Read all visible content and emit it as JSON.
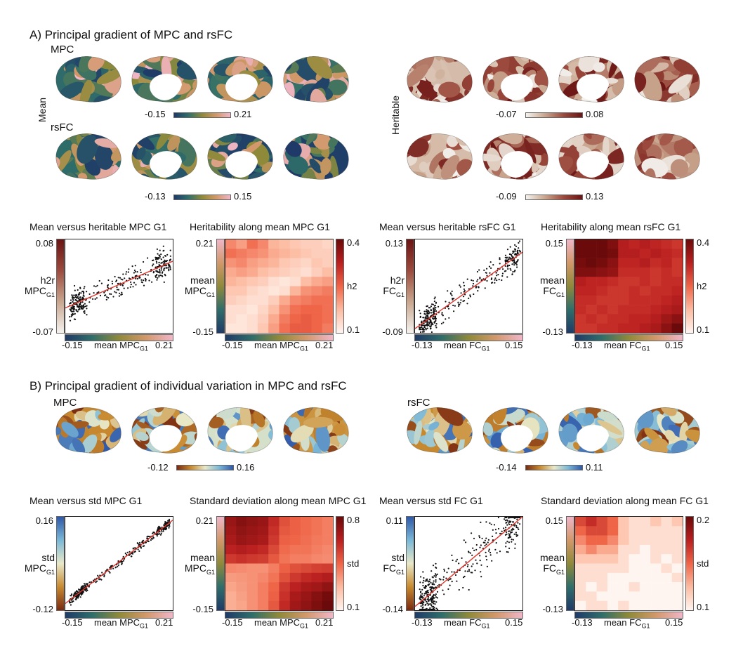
{
  "section_a": {
    "title": "A) Principal gradient of MPC and rsFC",
    "mpc_label": "MPC",
    "rsfc_label": "rsFC",
    "row_label_mean": "Mean",
    "row_label_heritable": "Heritable",
    "colorbars": {
      "mpc_mean": {
        "min": "-0.15",
        "max": "0.21"
      },
      "rsfc_mean": {
        "min": "-0.13",
        "max": "0.15"
      },
      "mpc_heritable": {
        "min": "-0.07",
        "max": "0.08"
      },
      "rsfc_heritable": {
        "min": "-0.09",
        "max": "0.13"
      }
    },
    "colors": {
      "mean_cmap": [
        "#1f3a68",
        "#2f6e6a",
        "#8f8a3a",
        "#d2986a",
        "#f0b6c8"
      ],
      "heritable_cmap": [
        "#f4f2ef",
        "#c9a68e",
        "#9c4b3e",
        "#6b1414"
      ]
    }
  },
  "section_b": {
    "title": "B) Principal gradient of individual variation in MPC and rsFC",
    "mpc_label": "MPC",
    "rsfc_label": "rsFC",
    "colorbars": {
      "mpc_std": {
        "min": "-0.12",
        "max": "0.16"
      },
      "rsfc_std": {
        "min": "-0.14",
        "max": "0.11"
      }
    },
    "colors": {
      "std_cmap": [
        "#7a2a10",
        "#c88a30",
        "#e8e8c8",
        "#7ab8d8",
        "#2f58a8"
      ]
    }
  },
  "chart_data": [
    {
      "type": "scatter",
      "title": "Mean versus heritable MPC G1",
      "ylabel_top": "h2r",
      "ylabel_main": "MPC",
      "ylabel_sub": "G1",
      "xlabel_main": "mean MPC",
      "xlabel_sub": "G1",
      "xlim": [
        -0.15,
        0.21
      ],
      "ylim": [
        -0.07,
        0.08
      ],
      "x_ticks": [
        "-0.15",
        "0.21"
      ],
      "y_ticks": [
        "0.08",
        "-0.07"
      ],
      "fit_line": {
        "x": [
          -0.15,
          0.21
        ],
        "y": [
          -0.03,
          0.045
        ]
      },
      "seed": 11,
      "n_points": 380,
      "noise": 0.016
    },
    {
      "type": "heatmap",
      "title": "Heritability along mean MPC G1",
      "ylabel_top": "mean",
      "ylabel_main": "MPC",
      "ylabel_sub": "G1",
      "xlabel_main": "mean MPC",
      "xlabel_sub": "G1",
      "x_ticks": [
        "-0.15",
        "0.21"
      ],
      "y_ticks": [
        "0.21",
        "-0.15"
      ],
      "colorbar_label": "h2",
      "colorbar_ticks": [
        "0.4",
        "0.1"
      ],
      "vmin": 0.1,
      "vmax": 0.4,
      "values": [
        [
          0.22,
          0.2,
          0.24,
          0.22,
          0.18,
          0.17,
          0.16,
          0.15,
          0.15,
          0.14
        ],
        [
          0.24,
          0.23,
          0.22,
          0.21,
          0.19,
          0.18,
          0.17,
          0.16,
          0.15,
          0.15
        ],
        [
          0.21,
          0.22,
          0.2,
          0.19,
          0.18,
          0.16,
          0.15,
          0.14,
          0.16,
          0.15
        ],
        [
          0.19,
          0.2,
          0.19,
          0.17,
          0.16,
          0.15,
          0.14,
          0.13,
          0.15,
          0.17
        ],
        [
          0.18,
          0.17,
          0.16,
          0.15,
          0.13,
          0.12,
          0.13,
          0.17,
          0.19,
          0.2
        ],
        [
          0.16,
          0.16,
          0.14,
          0.13,
          0.12,
          0.13,
          0.18,
          0.21,
          0.22,
          0.23
        ],
        [
          0.15,
          0.14,
          0.13,
          0.13,
          0.15,
          0.19,
          0.22,
          0.23,
          0.24,
          0.24
        ],
        [
          0.13,
          0.13,
          0.12,
          0.14,
          0.17,
          0.21,
          0.24,
          0.25,
          0.25,
          0.24
        ],
        [
          0.13,
          0.12,
          0.13,
          0.15,
          0.19,
          0.23,
          0.25,
          0.26,
          0.25,
          0.24
        ],
        [
          0.12,
          0.12,
          0.13,
          0.16,
          0.2,
          0.24,
          0.26,
          0.26,
          0.25,
          0.23
        ]
      ]
    },
    {
      "type": "scatter",
      "title": "Mean versus heritable rsFC G1",
      "ylabel_top": "h2r",
      "ylabel_main": "FC",
      "ylabel_sub": "G1",
      "xlabel_main": "mean FC",
      "xlabel_sub": "G1",
      "xlim": [
        -0.13,
        0.15
      ],
      "ylim": [
        -0.09,
        0.13
      ],
      "x_ticks": [
        "-0.13",
        "0.15"
      ],
      "y_ticks": [
        "0.13",
        "-0.09"
      ],
      "fit_line": {
        "x": [
          -0.13,
          0.15
        ],
        "y": [
          -0.08,
          0.1
        ]
      },
      "seed": 23,
      "n_points": 380,
      "noise": 0.022
    },
    {
      "type": "heatmap",
      "title": "Heritability along mean rsFC G1",
      "ylabel_top": "mean",
      "ylabel_main": "FC",
      "ylabel_sub": "G1",
      "xlabel_main": "mean FC",
      "xlabel_sub": "G1",
      "x_ticks": [
        "-0.13",
        "0.15"
      ],
      "y_ticks": [
        "0.15",
        "-0.13"
      ],
      "colorbar_label": "h2",
      "colorbar_ticks": [
        "0.4",
        "0.1"
      ],
      "vmin": 0.1,
      "vmax": 0.4,
      "values": [
        [
          0.4,
          0.4,
          0.4,
          0.38,
          0.33,
          0.32,
          0.33,
          0.32,
          0.31,
          0.3
        ],
        [
          0.4,
          0.4,
          0.4,
          0.39,
          0.33,
          0.33,
          0.32,
          0.33,
          0.32,
          0.31
        ],
        [
          0.39,
          0.4,
          0.39,
          0.37,
          0.32,
          0.32,
          0.33,
          0.31,
          0.32,
          0.3
        ],
        [
          0.38,
          0.38,
          0.37,
          0.36,
          0.31,
          0.31,
          0.31,
          0.3,
          0.31,
          0.3
        ],
        [
          0.33,
          0.32,
          0.32,
          0.31,
          0.3,
          0.3,
          0.31,
          0.3,
          0.31,
          0.31
        ],
        [
          0.32,
          0.32,
          0.31,
          0.3,
          0.3,
          0.31,
          0.3,
          0.31,
          0.31,
          0.32
        ],
        [
          0.31,
          0.31,
          0.3,
          0.3,
          0.3,
          0.31,
          0.31,
          0.31,
          0.32,
          0.33
        ],
        [
          0.31,
          0.3,
          0.31,
          0.3,
          0.31,
          0.31,
          0.31,
          0.32,
          0.33,
          0.34
        ],
        [
          0.3,
          0.31,
          0.3,
          0.31,
          0.31,
          0.32,
          0.32,
          0.33,
          0.35,
          0.37
        ],
        [
          0.3,
          0.3,
          0.31,
          0.31,
          0.32,
          0.32,
          0.33,
          0.34,
          0.37,
          0.4
        ]
      ]
    },
    {
      "type": "scatter",
      "title": "Mean versus std MPC G1",
      "ylabel_top": "std",
      "ylabel_main": "MPC",
      "ylabel_sub": "G1",
      "xlabel_main": "mean MPC",
      "xlabel_sub": "G1",
      "xlim": [
        -0.15,
        0.21
      ],
      "ylim": [
        -0.12,
        0.16
      ],
      "x_ticks": [
        "-0.15",
        "0.21"
      ],
      "y_ticks": [
        "0.16",
        "-0.12"
      ],
      "fit_line": {
        "x": [
          -0.15,
          0.21
        ],
        "y": [
          -0.1,
          0.15
        ]
      },
      "seed": 37,
      "n_points": 380,
      "noise": 0.009
    },
    {
      "type": "heatmap",
      "title": "Standard deviation along mean MPC G1",
      "ylabel_top": "mean",
      "ylabel_main": "MPC",
      "ylabel_sub": "G1",
      "xlabel_main": "mean MPC",
      "xlabel_sub": "G1",
      "x_ticks": [
        "-0.15",
        "0.21"
      ],
      "y_ticks": [
        "0.21",
        "-0.15"
      ],
      "colorbar_label": "std",
      "colorbar_ticks": [
        "0.8",
        "0.1"
      ],
      "vmin": 0.1,
      "vmax": 0.8,
      "values": [
        [
          0.7,
          0.74,
          0.72,
          0.7,
          0.6,
          0.5,
          0.46,
          0.44,
          0.42,
          0.4
        ],
        [
          0.68,
          0.72,
          0.7,
          0.68,
          0.58,
          0.48,
          0.46,
          0.44,
          0.42,
          0.4
        ],
        [
          0.66,
          0.7,
          0.68,
          0.66,
          0.56,
          0.46,
          0.45,
          0.43,
          0.41,
          0.4
        ],
        [
          0.62,
          0.64,
          0.62,
          0.6,
          0.52,
          0.44,
          0.42,
          0.42,
          0.4,
          0.38
        ],
        [
          0.56,
          0.58,
          0.56,
          0.55,
          0.48,
          0.42,
          0.4,
          0.4,
          0.38,
          0.37
        ],
        [
          0.38,
          0.37,
          0.36,
          0.36,
          0.4,
          0.46,
          0.5,
          0.52,
          0.54,
          0.55
        ],
        [
          0.34,
          0.35,
          0.36,
          0.38,
          0.42,
          0.5,
          0.56,
          0.6,
          0.62,
          0.64
        ],
        [
          0.32,
          0.34,
          0.36,
          0.4,
          0.45,
          0.56,
          0.62,
          0.66,
          0.68,
          0.72
        ],
        [
          0.3,
          0.33,
          0.36,
          0.4,
          0.46,
          0.58,
          0.66,
          0.7,
          0.74,
          0.78
        ],
        [
          0.3,
          0.32,
          0.36,
          0.4,
          0.48,
          0.6,
          0.68,
          0.72,
          0.76,
          0.8
        ]
      ]
    },
    {
      "type": "scatter",
      "title": "Mean versus std FC G1",
      "ylabel_top": "std",
      "ylabel_main": "FC",
      "ylabel_sub": "G1",
      "xlabel_main": "mean FC",
      "xlabel_sub": "G1",
      "xlim": [
        -0.13,
        0.15
      ],
      "ylim": [
        -0.14,
        0.11
      ],
      "x_ticks": [
        "-0.13",
        "0.15"
      ],
      "y_ticks": [
        "0.11",
        "-0.14"
      ],
      "fit_line": {
        "x": [
          -0.13,
          0.15
        ],
        "y": [
          -0.13,
          0.11
        ]
      },
      "seed": 53,
      "n_points": 420,
      "noise": 0.045
    },
    {
      "type": "heatmap",
      "title": "Standard deviation along mean FC G1",
      "ylabel_top": "mean",
      "ylabel_main": "FC",
      "ylabel_sub": "G1",
      "xlabel_main": "mean FC",
      "xlabel_sub": "G1",
      "x_ticks": [
        "-0.13",
        "0.15"
      ],
      "y_ticks": [
        "0.15",
        "-0.13"
      ],
      "colorbar_label": "std",
      "colorbar_ticks": [
        "0.2",
        "0.1"
      ],
      "vmin": 0.1,
      "vmax": 0.2,
      "values": [
        [
          0.16,
          0.17,
          0.16,
          0.15,
          0.12,
          0.11,
          0.11,
          0.12,
          0.11,
          0.12
        ],
        [
          0.15,
          0.16,
          0.16,
          0.15,
          0.12,
          0.11,
          0.11,
          0.11,
          0.11,
          0.11
        ],
        [
          0.14,
          0.15,
          0.15,
          0.14,
          0.12,
          0.11,
          0.11,
          0.11,
          0.11,
          0.11
        ],
        [
          0.13,
          0.14,
          0.13,
          0.13,
          0.11,
          0.11,
          0.1,
          0.11,
          0.11,
          0.11
        ],
        [
          0.12,
          0.12,
          0.12,
          0.12,
          0.11,
          0.1,
          0.1,
          0.11,
          0.1,
          0.11
        ],
        [
          0.11,
          0.11,
          0.11,
          0.11,
          0.11,
          0.1,
          0.1,
          0.1,
          0.11,
          0.1
        ],
        [
          0.11,
          0.11,
          0.11,
          0.1,
          0.1,
          0.1,
          0.1,
          0.1,
          0.1,
          0.11
        ],
        [
          0.11,
          0.1,
          0.11,
          0.1,
          0.1,
          0.11,
          0.1,
          0.1,
          0.1,
          0.1
        ],
        [
          0.11,
          0.11,
          0.1,
          0.1,
          0.1,
          0.1,
          0.1,
          0.1,
          0.1,
          0.1
        ],
        [
          0.1,
          0.11,
          0.11,
          0.1,
          0.11,
          0.1,
          0.1,
          0.1,
          0.1,
          0.1
        ]
      ]
    }
  ]
}
